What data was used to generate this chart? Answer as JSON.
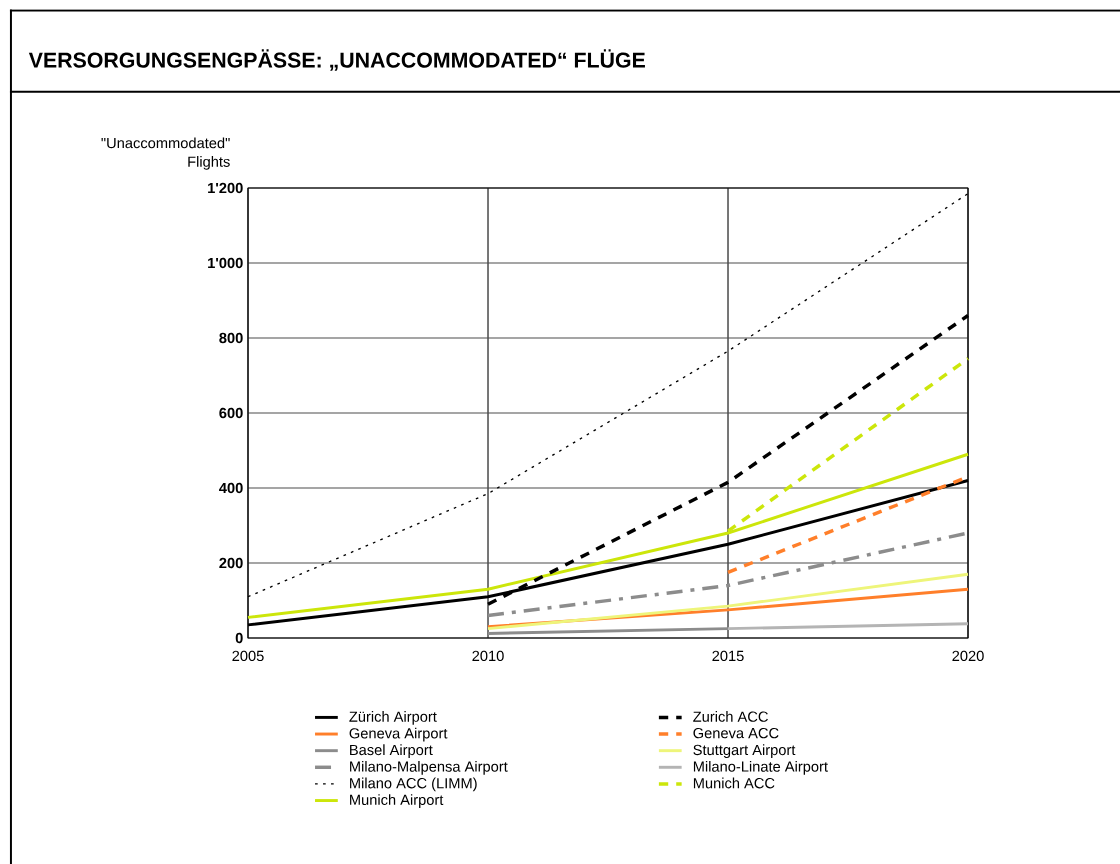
{
  "chart_data": {
    "type": "line",
    "title": "VERSORGUNGSENGPÄSSE: „UNACCOMMODATED“ FLÜGE",
    "ylabel": "\"Unaccommodated\" Flights",
    "xlim": [
      2005,
      2020
    ],
    "xticks": [
      2005,
      2010,
      2015,
      2020
    ],
    "ylim": [
      0,
      1200
    ],
    "yticks": [
      0,
      200,
      400,
      600,
      800,
      {
        "value": 1000,
        "label": "1'000"
      },
      {
        "value": 1200,
        "label": "1'200"
      }
    ],
    "grid": true,
    "legend": "bottom",
    "marker": "none",
    "series": [
      {
        "name": "Zürich Airport",
        "color": "#000000",
        "line_style": "solid",
        "x": [
          2005,
          2010,
          2015,
          2020
        ],
        "values": [
          35,
          110,
          250,
          420
        ]
      },
      {
        "name": "Geneva Airport",
        "color": "#ff7f2a",
        "line_style": "solid",
        "x": [
          2010,
          2015,
          2020
        ],
        "values": [
          30,
          75,
          130
        ]
      },
      {
        "name": "Basel Airport",
        "color": "#8c8c8c",
        "line_style": "solid",
        "x": [
          2010,
          2015
        ],
        "values": [
          12,
          25
        ]
      },
      {
        "name": "Milano-Malpensa Airport",
        "color": "#8c8c8c",
        "line_style": "dashdot",
        "x": [
          2010,
          2015,
          2020
        ],
        "values": [
          60,
          140,
          280
        ]
      },
      {
        "name": "Milano ACC (LIMM)",
        "color": "#000000",
        "line_style": "dotted",
        "x": [
          2005,
          2010,
          2015,
          2020
        ],
        "values": [
          110,
          385,
          765,
          1185
        ]
      },
      {
        "name": "Munich Airport",
        "color": "#cce60a",
        "line_style": "solid",
        "x": [
          2005,
          2010,
          2015,
          2020
        ],
        "values": [
          55,
          130,
          280,
          490
        ]
      },
      {
        "name": "Zurich ACC",
        "color": "#000000",
        "line_style": "dashed",
        "x": [
          2010,
          2015,
          2020
        ],
        "values": [
          90,
          415,
          860
        ]
      },
      {
        "name": "Geneva ACC",
        "color": "#ff7f2a",
        "line_style": "dashed",
        "x": [
          2015,
          2020
        ],
        "values": [
          175,
          430
        ]
      },
      {
        "name": "Stuttgart Airport",
        "color": "#eef57a",
        "line_style": "solid",
        "x": [
          2010,
          2015,
          2020
        ],
        "values": [
          25,
          85,
          170
        ]
      },
      {
        "name": "Milano-Linate Airport",
        "color": "#b4b4b4",
        "line_style": "solid",
        "x": [
          2015,
          2020
        ],
        "values": [
          25,
          38
        ]
      },
      {
        "name": "Munich ACC",
        "color": "#cce60a",
        "line_style": "dashed",
        "x": [
          2015,
          2020
        ],
        "values": [
          285,
          745
        ]
      }
    ]
  }
}
